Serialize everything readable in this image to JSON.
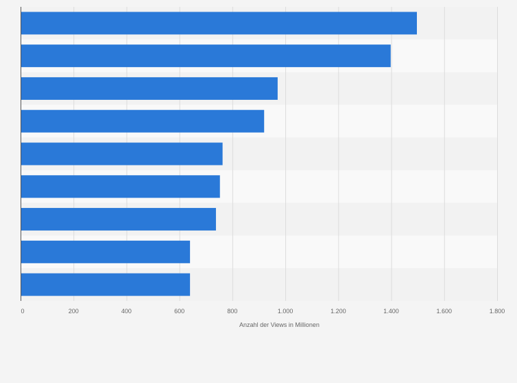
{
  "chart_data": {
    "type": "bar",
    "orientation": "horizontal",
    "title": "",
    "xlabel": "Anzahl der Views in Millionen",
    "ylabel": "",
    "xlim": [
      0,
      1800
    ],
    "x_ticks": [
      0,
      200,
      400,
      600,
      800,
      1000,
      1200,
      1400,
      1600,
      1800
    ],
    "x_tick_labels": [
      "0",
      "200",
      "400",
      "600",
      "800",
      "1.000",
      "1.200",
      "1.400",
      "1.600",
      "1.800"
    ],
    "categories": [
      "",
      "",
      "",
      "",
      "",
      "",
      "",
      "",
      ""
    ],
    "values": [
      1497,
      1398,
      971,
      920,
      763,
      753,
      738,
      640,
      640
    ],
    "grid": "vertical",
    "legend": "none"
  },
  "colors": {
    "bar": "#2a79d8",
    "band_dark": "#f2f2f2",
    "band_light": "#f9f9f9",
    "grid": "#dcdcdc",
    "axis": "#555555",
    "background": "#f4f4f4"
  }
}
